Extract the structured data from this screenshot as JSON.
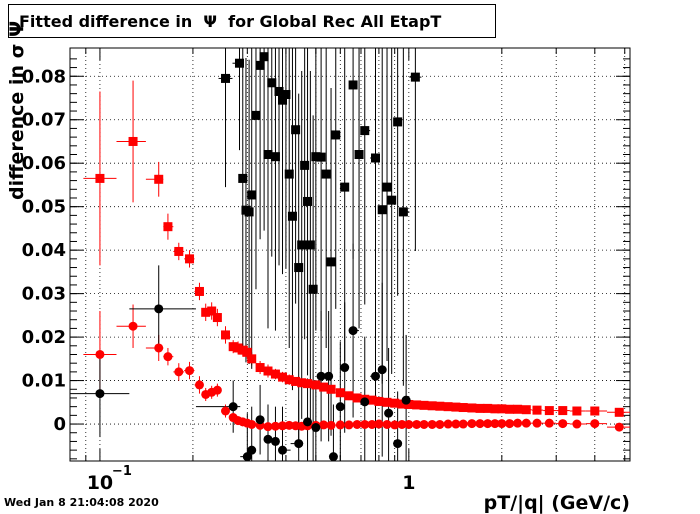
{
  "chart_data": {
    "type": "scatter",
    "title": "Fitted difference in  Ψ  for Global Rec All EtapT",
    "xlabel": "pT/|q| (GeV/c)",
    "ylabel": "difference in σ Ψ",
    "x_scale": "log",
    "xlim": [
      0.08,
      5.2
    ],
    "ylim": [
      -0.0085,
      0.0865
    ],
    "grid": true,
    "x_ticks": [
      {
        "value": 0.1,
        "label": "10",
        "exp": "−1"
      },
      {
        "value": 1,
        "label": "1",
        "exp": ""
      }
    ],
    "y_ticks": [
      {
        "value": 0,
        "label": "0"
      },
      {
        "value": 0.01,
        "label": "0.01"
      },
      {
        "value": 0.02,
        "label": "0.02"
      },
      {
        "value": 0.03,
        "label": "0.03"
      },
      {
        "value": 0.04,
        "label": "0.04"
      },
      {
        "value": 0.05,
        "label": "0.05"
      },
      {
        "value": 0.06,
        "label": "0.06"
      },
      {
        "value": 0.07,
        "label": "0.07"
      },
      {
        "value": 0.08,
        "label": "0.08"
      }
    ],
    "series": [
      {
        "color": "#ff0000",
        "marker": "square",
        "points": [
          [
            0.1,
            0.0565,
            0.02
          ],
          [
            0.128,
            0.065,
            0.014
          ],
          [
            0.155,
            0.0563,
            0.004
          ],
          [
            0.166,
            0.0454,
            0.003
          ],
          [
            0.18,
            0.0397,
            0.002
          ],
          [
            0.195,
            0.038,
            0.002
          ],
          [
            0.21,
            0.0305,
            0.002
          ],
          [
            0.22,
            0.0257,
            0.002
          ],
          [
            0.23,
            0.026,
            0.002
          ],
          [
            0.24,
            0.0245,
            0.002
          ],
          [
            0.255,
            0.0205,
            0.002
          ],
          [
            0.27,
            0.0178,
            0.0015
          ],
          [
            0.28,
            0.0175,
            0.0015
          ],
          [
            0.29,
            0.017,
            0.0015
          ],
          [
            0.3,
            0.0165,
            0.0015
          ],
          [
            0.31,
            0.015,
            0.0015
          ],
          [
            0.33,
            0.013,
            0.0015
          ],
          [
            0.35,
            0.0122,
            0.0015
          ],
          [
            0.37,
            0.0115,
            0.0012
          ],
          [
            0.39,
            0.0108,
            0.0012
          ],
          [
            0.41,
            0.0102,
            0.0012
          ],
          [
            0.43,
            0.0098,
            0.001
          ],
          [
            0.45,
            0.0095,
            0.001
          ],
          [
            0.47,
            0.0093,
            0.001
          ],
          [
            0.5,
            0.009,
            0.001
          ],
          [
            0.53,
            0.0085,
            0.001
          ],
          [
            0.56,
            0.008,
            0.001
          ],
          [
            0.6,
            0.0072,
            0.001
          ],
          [
            0.64,
            0.0065,
            0.001
          ],
          [
            0.68,
            0.006,
            0.001
          ],
          [
            0.72,
            0.0057,
            0.0008
          ],
          [
            0.76,
            0.0055,
            0.0008
          ],
          [
            0.8,
            0.0052,
            0.0008
          ],
          [
            0.85,
            0.005,
            0.0008
          ],
          [
            0.9,
            0.0048,
            0.0008
          ],
          [
            0.95,
            0.0046,
            0.0008
          ],
          [
            1.0,
            0.0045,
            0.0008
          ],
          [
            1.06,
            0.0044,
            0.0006
          ],
          [
            1.12,
            0.0043,
            0.0006
          ],
          [
            1.19,
            0.0042,
            0.0006
          ],
          [
            1.26,
            0.0041,
            0.0006
          ],
          [
            1.34,
            0.004,
            0.0006
          ],
          [
            1.42,
            0.0039,
            0.0006
          ],
          [
            1.5,
            0.0038,
            0.0006
          ],
          [
            1.6,
            0.0037,
            0.0006
          ],
          [
            1.7,
            0.0036,
            0.0006
          ],
          [
            1.8,
            0.0036,
            0.0006
          ],
          [
            1.9,
            0.0035,
            0.0006
          ],
          [
            2.0,
            0.0035,
            0.0006
          ],
          [
            2.12,
            0.0034,
            0.0006
          ],
          [
            2.25,
            0.0034,
            0.0006
          ],
          [
            2.4,
            0.0033,
            0.0006
          ],
          [
            2.6,
            0.0032,
            0.0006
          ],
          [
            2.85,
            0.0031,
            0.0006
          ],
          [
            3.15,
            0.0031,
            0.0006
          ],
          [
            3.5,
            0.003,
            0.0006
          ],
          [
            4.0,
            0.003,
            0.0006
          ],
          [
            4.8,
            0.0027,
            0.0006
          ]
        ]
      },
      {
        "color": "#ff0000",
        "marker": "circle",
        "points": [
          [
            0.1,
            0.016,
            0.01
          ],
          [
            0.128,
            0.0225,
            0.005
          ],
          [
            0.155,
            0.0175,
            0.003
          ],
          [
            0.166,
            0.0155,
            0.002
          ],
          [
            0.18,
            0.012,
            0.002
          ],
          [
            0.195,
            0.0123,
            0.002
          ],
          [
            0.21,
            0.009,
            0.002
          ],
          [
            0.22,
            0.0068,
            0.0015
          ],
          [
            0.23,
            0.0073,
            0.0015
          ],
          [
            0.24,
            0.0078,
            0.0015
          ],
          [
            0.255,
            0.003,
            0.0015
          ],
          [
            0.27,
            0.0015,
            0.001
          ],
          [
            0.28,
            0.0008,
            0.001
          ],
          [
            0.29,
            0.0005,
            0.001
          ],
          [
            0.3,
            0.0002,
            0.001
          ],
          [
            0.31,
            -0.0001,
            0.001
          ],
          [
            0.33,
            -0.0003,
            0.001
          ],
          [
            0.35,
            -0.0006,
            0.001
          ],
          [
            0.37,
            -0.0005,
            0.001
          ],
          [
            0.39,
            -0.0004,
            0.0008
          ],
          [
            0.41,
            -0.0003,
            0.0008
          ],
          [
            0.43,
            -0.0004,
            0.0008
          ],
          [
            0.45,
            -0.0005,
            0.0008
          ],
          [
            0.47,
            -0.0004,
            0.0008
          ],
          [
            0.5,
            -0.0003,
            0.0008
          ],
          [
            0.53,
            -0.0002,
            0.0008
          ],
          [
            0.56,
            -0.0003,
            0.0008
          ],
          [
            0.6,
            -0.0002,
            0.0008
          ],
          [
            0.64,
            -0.0002,
            0.0008
          ],
          [
            0.68,
            -0.0001,
            0.0008
          ],
          [
            0.72,
            -0.0001,
            0.0006
          ],
          [
            0.76,
            -0.0001,
            0.0006
          ],
          [
            0.8,
            0.0,
            0.0006
          ],
          [
            0.85,
            -0.0001,
            0.0006
          ],
          [
            0.9,
            -0.0002,
            0.0006
          ],
          [
            0.95,
            -0.0001,
            0.0006
          ],
          [
            1.0,
            -0.0001,
            0.0006
          ],
          [
            1.06,
            -0.0001,
            0.0006
          ],
          [
            1.12,
            -0.0001,
            0.0006
          ],
          [
            1.19,
            -0.0001,
            0.0006
          ],
          [
            1.26,
            -0.0001,
            0.0006
          ],
          [
            1.34,
            0.0,
            0.0006
          ],
          [
            1.42,
            0.0,
            0.0006
          ],
          [
            1.5,
            0.0,
            0.0006
          ],
          [
            1.6,
            0.0001,
            0.0006
          ],
          [
            1.7,
            0.0001,
            0.0006
          ],
          [
            1.8,
            0.0001,
            0.0006
          ],
          [
            1.9,
            0.0001,
            0.0006
          ],
          [
            2.0,
            0.0001,
            0.0006
          ],
          [
            2.12,
            0.0001,
            0.0006
          ],
          [
            2.25,
            0.0002,
            0.0006
          ],
          [
            2.4,
            0.0002,
            0.0006
          ],
          [
            2.6,
            0.0002,
            0.0006
          ],
          [
            2.85,
            0.0002,
            0.0006
          ],
          [
            3.15,
            0.0001,
            0.0006
          ],
          [
            3.5,
            0.0,
            0.0006
          ],
          [
            4.0,
            0.0001,
            0.0006
          ],
          [
            4.8,
            -0.0007,
            0.0006
          ]
        ]
      },
      {
        "color": "#000000",
        "marker": "square",
        "points": [
          [
            0.255,
            0.0795,
            0.025
          ],
          [
            0.283,
            0.083,
            0.02
          ],
          [
            0.29,
            0.0565,
            0.04
          ],
          [
            0.297,
            0.0492,
            0.035
          ],
          [
            0.304,
            0.0488,
            0.035
          ],
          [
            0.31,
            0.0527,
            0.04
          ],
          [
            0.32,
            0.071,
            0.04
          ],
          [
            0.33,
            0.0825,
            0.04
          ],
          [
            0.34,
            0.0845,
            0.04
          ],
          [
            0.35,
            0.062,
            0.04
          ],
          [
            0.36,
            0.0785,
            0.04
          ],
          [
            0.37,
            0.0615,
            0.04
          ],
          [
            0.38,
            0.0765,
            0.04
          ],
          [
            0.39,
            0.0745,
            0.04
          ],
          [
            0.4,
            0.0758,
            0.04
          ],
          [
            0.41,
            0.0575,
            0.04
          ],
          [
            0.42,
            0.0478,
            0.04
          ],
          [
            0.43,
            0.0677,
            0.04
          ],
          [
            0.44,
            0.036,
            0.04
          ],
          [
            0.45,
            0.0412,
            0.04
          ],
          [
            0.46,
            0.0595,
            0.04
          ],
          [
            0.47,
            0.0512,
            0.04
          ],
          [
            0.48,
            0.0412,
            0.04
          ],
          [
            0.49,
            0.031,
            0.04
          ],
          [
            0.5,
            0.0615,
            0.04
          ],
          [
            0.52,
            0.0614,
            0.04
          ],
          [
            0.54,
            0.0575,
            0.04
          ],
          [
            0.56,
            0.0373,
            0.04
          ],
          [
            0.58,
            0.0665,
            0.04
          ],
          [
            0.62,
            0.0545,
            0.04
          ],
          [
            0.66,
            0.078,
            0.04
          ],
          [
            0.69,
            0.062,
            0.04
          ],
          [
            0.72,
            0.0675,
            0.04
          ],
          [
            0.78,
            0.0612,
            0.04
          ],
          [
            0.82,
            0.0493,
            0.04
          ],
          [
            0.85,
            0.0545,
            0.04
          ],
          [
            0.88,
            0.0515,
            0.04
          ],
          [
            0.92,
            0.0695,
            0.04
          ],
          [
            0.96,
            0.0488,
            0.04
          ],
          [
            1.05,
            0.0798,
            0.04
          ]
        ]
      },
      {
        "color": "#000000",
        "marker": "circle",
        "points": [
          [
            0.1,
            0.007,
            0.01
          ],
          [
            0.155,
            0.0265,
            0.01
          ],
          [
            0.27,
            0.004,
            0.006
          ],
          [
            0.3,
            -0.0075,
            0.01
          ],
          [
            0.31,
            -0.006,
            0.01
          ],
          [
            0.33,
            0.001,
            0.008
          ],
          [
            0.35,
            -0.0035,
            0.008
          ],
          [
            0.37,
            -0.004,
            0.008
          ],
          [
            0.39,
            -0.006,
            0.01
          ],
          [
            0.44,
            -0.0045,
            0.01
          ],
          [
            0.47,
            0.0005,
            0.01
          ],
          [
            0.5,
            -0.0008,
            0.01
          ],
          [
            0.52,
            0.011,
            0.015
          ],
          [
            0.55,
            0.011,
            0.015
          ],
          [
            0.57,
            -0.0075,
            0.012
          ],
          [
            0.6,
            0.004,
            0.015
          ],
          [
            0.62,
            0.013,
            0.015
          ],
          [
            0.66,
            0.0215,
            0.02
          ],
          [
            0.72,
            0.0051,
            0.015
          ],
          [
            0.78,
            0.011,
            0.02
          ],
          [
            0.82,
            0.0125,
            0.02
          ],
          [
            0.86,
            0.0025,
            0.015
          ],
          [
            0.92,
            -0.0045,
            0.012
          ],
          [
            0.98,
            0.0055,
            0.015
          ]
        ]
      }
    ],
    "footer": "Wed Jan  8 21:04:08 2020"
  }
}
